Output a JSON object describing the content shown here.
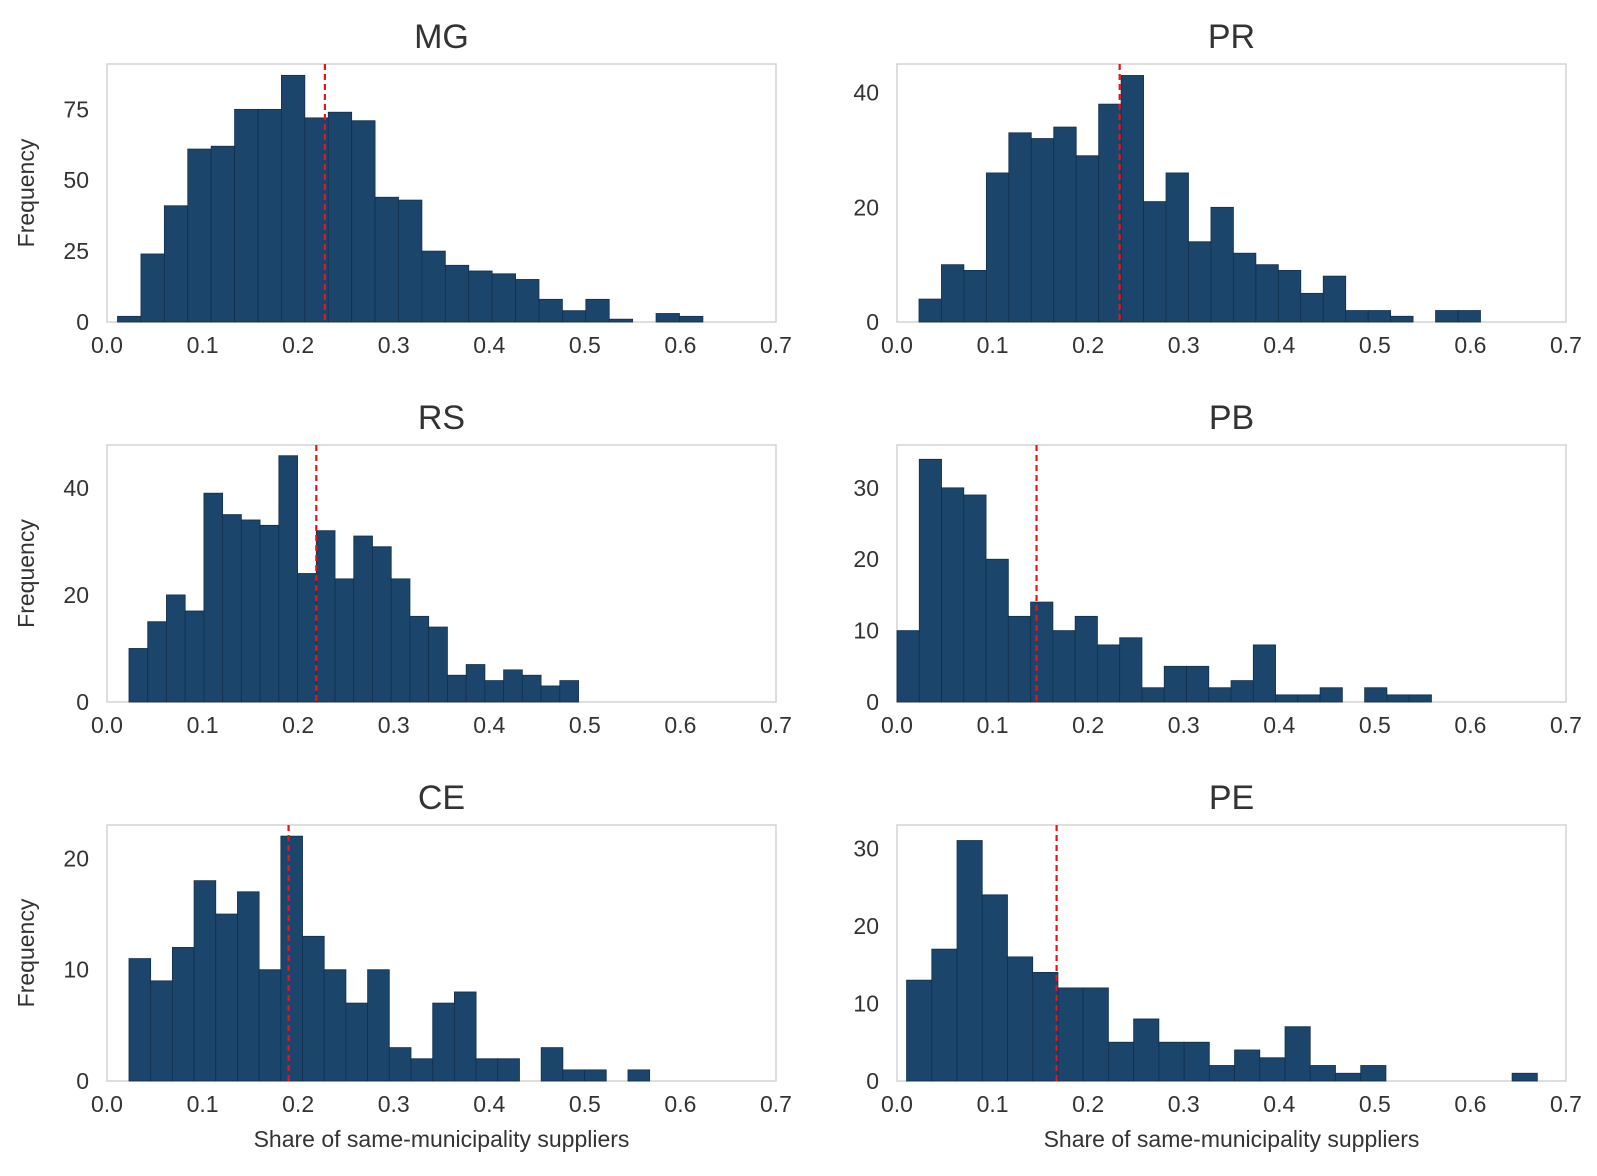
{
  "colors": {
    "bar_fill": "#1c456b",
    "bar_edge": "#12304d",
    "mean_line": "#e8141b",
    "frame": "#d3d3d3",
    "text": "#333333"
  },
  "chart_data": [
    {
      "type": "bar",
      "title": "MG",
      "xlabel": "",
      "ylabel": "Frequency",
      "xlim": [
        0.0,
        0.7
      ],
      "ylim": [
        0,
        91
      ],
      "xticks": [
        "0.0",
        "0.1",
        "0.2",
        "0.3",
        "0.4",
        "0.5",
        "0.6",
        "0.7"
      ],
      "yticks": [
        0,
        25,
        50,
        75
      ],
      "bin_start": 0.011,
      "bin_width": 0.0245,
      "values": [
        2,
        24,
        41,
        61,
        62,
        75,
        75,
        87,
        72,
        74,
        71,
        44,
        43,
        25,
        20,
        18,
        17,
        15,
        8,
        4,
        8,
        1,
        0,
        3,
        2
      ],
      "mean_line": 0.228,
      "grid": false
    },
    {
      "type": "bar",
      "title": "PR",
      "xlabel": "",
      "ylabel": "",
      "xlim": [
        0.0,
        0.7
      ],
      "ylim": [
        0,
        45
      ],
      "xticks": [
        "0.0",
        "0.1",
        "0.2",
        "0.3",
        "0.4",
        "0.5",
        "0.6",
        "0.7"
      ],
      "yticks": [
        0,
        20,
        40
      ],
      "bin_start": 0.023,
      "bin_width": 0.0235,
      "values": [
        4,
        10,
        9,
        26,
        33,
        32,
        34,
        29,
        38,
        43,
        21,
        26,
        14,
        20,
        12,
        10,
        9,
        5,
        8,
        2,
        2,
        1,
        0,
        2,
        2
      ],
      "mean_line": 0.233,
      "grid": false
    },
    {
      "type": "bar",
      "title": "RS",
      "xlabel": "",
      "ylabel": "Frequency",
      "xlim": [
        0.0,
        0.7
      ],
      "ylim": [
        0,
        48
      ],
      "xticks": [
        "0.0",
        "0.1",
        "0.2",
        "0.3",
        "0.4",
        "0.5",
        "0.6",
        "0.7"
      ],
      "yticks": [
        0,
        20,
        40
      ],
      "bin_start": 0.023,
      "bin_width": 0.0196,
      "values": [
        10,
        15,
        20,
        17,
        39,
        35,
        34,
        33,
        46,
        24,
        32,
        23,
        31,
        29,
        23,
        16,
        14,
        5,
        7,
        4,
        6,
        5,
        3,
        4
      ],
      "mean_line": 0.219,
      "grid": false
    },
    {
      "type": "bar",
      "title": "PB",
      "xlabel": "",
      "ylabel": "",
      "xlim": [
        0.0,
        0.7
      ],
      "ylim": [
        0,
        36
      ],
      "xticks": [
        "0.0",
        "0.1",
        "0.2",
        "0.3",
        "0.4",
        "0.5",
        "0.6",
        "0.7"
      ],
      "yticks": [
        0,
        10,
        20,
        30
      ],
      "bin_start": 0.0,
      "bin_width": 0.0233,
      "values": [
        10,
        34,
        30,
        29,
        20,
        12,
        14,
        10,
        12,
        8,
        9,
        2,
        5,
        5,
        2,
        3,
        8,
        1,
        1,
        2,
        0,
        2,
        1,
        1
      ],
      "mean_line": 0.146,
      "grid": false
    },
    {
      "type": "bar",
      "title": "CE",
      "xlabel": "Share of same-municipality suppliers",
      "ylabel": "Frequency",
      "xlim": [
        0.0,
        0.7
      ],
      "ylim": [
        0,
        23
      ],
      "xticks": [
        "0.0",
        "0.1",
        "0.2",
        "0.3",
        "0.4",
        "0.5",
        "0.6",
        "0.7"
      ],
      "yticks": [
        0,
        10,
        20
      ],
      "bin_start": 0.023,
      "bin_width": 0.0227,
      "values": [
        11,
        9,
        12,
        18,
        15,
        17,
        10,
        22,
        13,
        10,
        7,
        10,
        3,
        2,
        7,
        8,
        2,
        2,
        0,
        3,
        1,
        1,
        0,
        1
      ],
      "mean_line": 0.19,
      "grid": false
    },
    {
      "type": "bar",
      "title": "PE",
      "xlabel": "Share of same-municipality suppliers",
      "ylabel": "",
      "xlim": [
        0.0,
        0.7
      ],
      "ylim": [
        0,
        33
      ],
      "xticks": [
        "0.0",
        "0.1",
        "0.2",
        "0.3",
        "0.4",
        "0.5",
        "0.6",
        "0.7"
      ],
      "yticks": [
        0,
        10,
        20,
        30
      ],
      "bin_start": 0.01,
      "bin_width": 0.0264,
      "values": [
        13,
        17,
        31,
        24,
        16,
        14,
        12,
        12,
        5,
        8,
        5,
        5,
        2,
        4,
        3,
        7,
        2,
        1,
        2,
        0,
        0,
        0,
        0,
        0,
        1
      ],
      "mean_line": 0.167,
      "grid": false
    }
  ]
}
